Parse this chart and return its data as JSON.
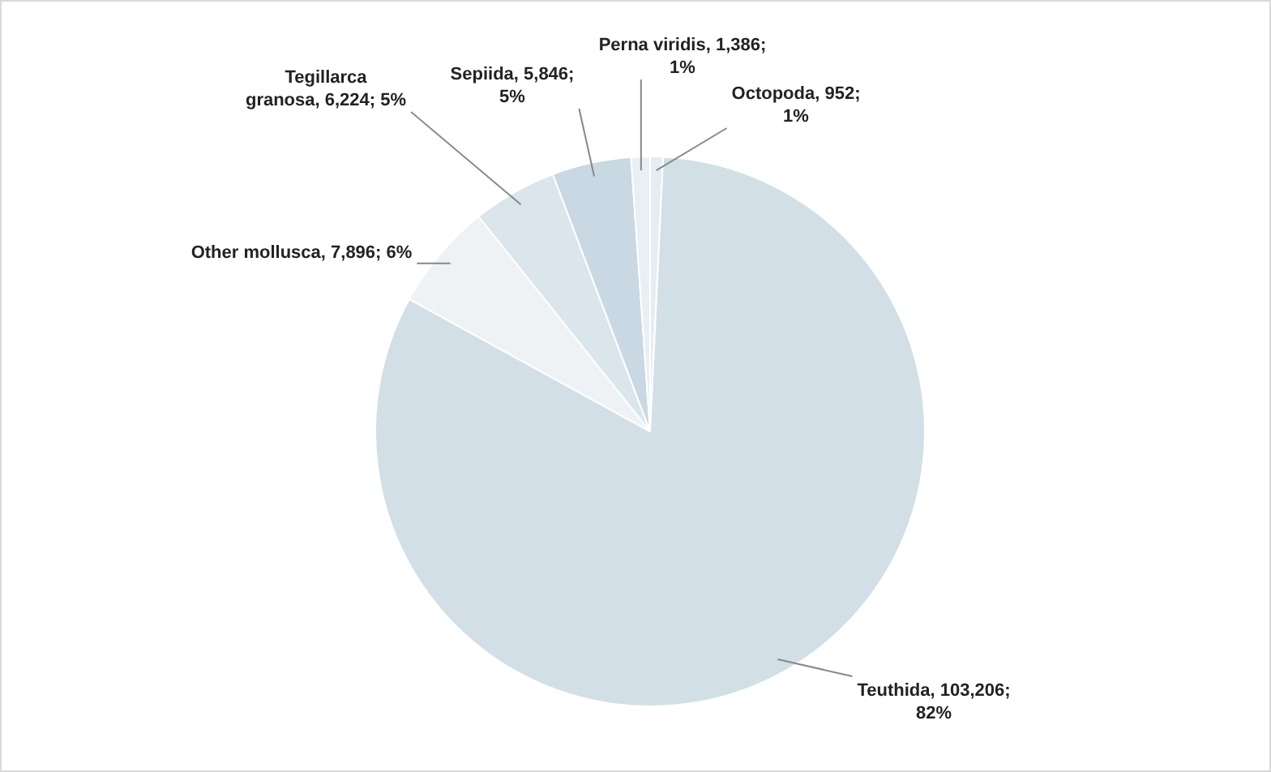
{
  "chart_data": {
    "type": "pie",
    "categories": [
      "Octopoda",
      "Teuthida",
      "Other mollusca",
      "Tegillarca granosa",
      "Sepiida",
      "Perna viridis"
    ],
    "values": [
      952,
      103206,
      7896,
      6224,
      5846,
      1386
    ],
    "value_labels": [
      "952; 1%",
      "103,206; 82%",
      "7,896; 6%",
      "6,224; 5%",
      "5,846; 5%",
      "1,386; 1%"
    ],
    "colors": [
      "#e6edf2",
      "#d3dfe7",
      "#eef2f5",
      "#dbe5ec",
      "#c9d8e2",
      "#e9eff3"
    ]
  }
}
